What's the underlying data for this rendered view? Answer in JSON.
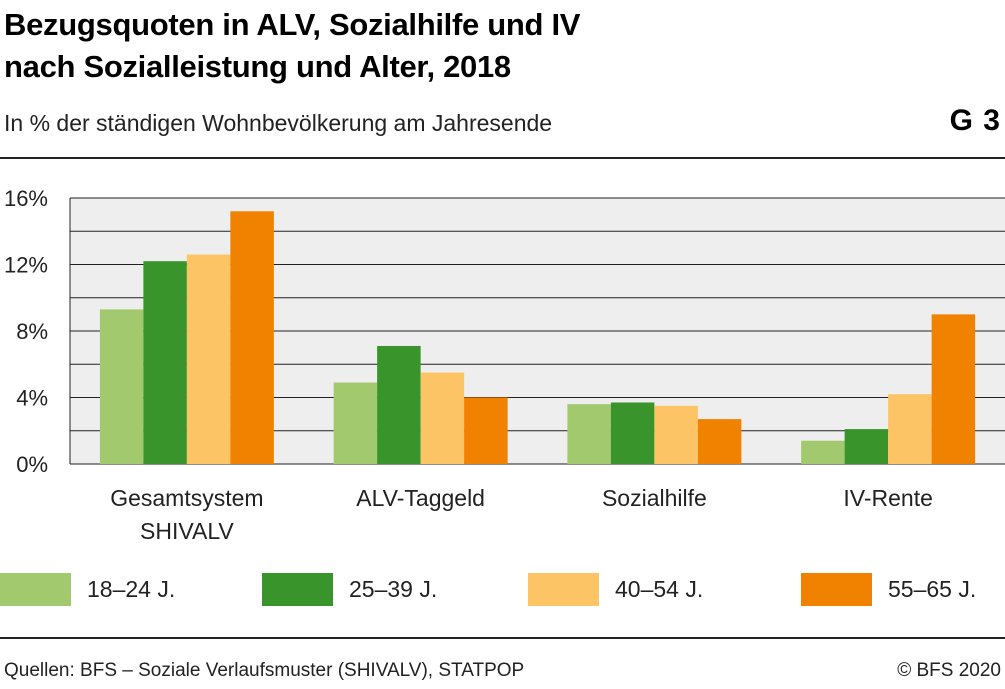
{
  "header": {
    "title_line1": "Bezugsquoten in ALV, Sozialhilfe und IV",
    "title_line2": "nach Sozialleistung und Alter, 2018",
    "subtitle": "In % der ständigen Wohnbevölkerung am Jahresende",
    "graph_number": "G 3"
  },
  "footer": {
    "source": "Quellen: BFS – Soziale Verlaufsmuster (SHIVALV), STATPOP",
    "copyright": "© BFS 2020"
  },
  "chart_data": {
    "type": "bar",
    "title": "Bezugsquoten in ALV, Sozialhilfe und IV nach Sozialleistung und Alter, 2018",
    "categories": [
      [
        "Gesamtsystem",
        "SHIVALV"
      ],
      [
        "ALV-Taggeld"
      ],
      [
        "Sozialhilfe"
      ],
      [
        "IV-Rente"
      ]
    ],
    "series": [
      {
        "name": "18–24 J.",
        "color": "#a3c96e",
        "values": [
          9.3,
          4.9,
          3.6,
          1.4
        ]
      },
      {
        "name": "25–39 J.",
        "color": "#3a942c",
        "values": [
          12.2,
          7.1,
          3.7,
          2.1
        ]
      },
      {
        "name": "40–54 J.",
        "color": "#fcc464",
        "values": [
          12.6,
          5.5,
          3.5,
          4.2
        ]
      },
      {
        "name": "55–65 J.",
        "color": "#f08200",
        "values": [
          15.2,
          4.0,
          2.7,
          9.0
        ]
      }
    ],
    "ylim": [
      0,
      16
    ],
    "yticks": [
      0,
      4,
      8,
      12,
      16
    ],
    "ytick_labels": [
      "0%",
      "4%",
      "8%",
      "12%",
      "16%"
    ],
    "grid_step": 2,
    "grid": true,
    "legend_position": "bottom",
    "plot_background": "#eeeeee"
  }
}
